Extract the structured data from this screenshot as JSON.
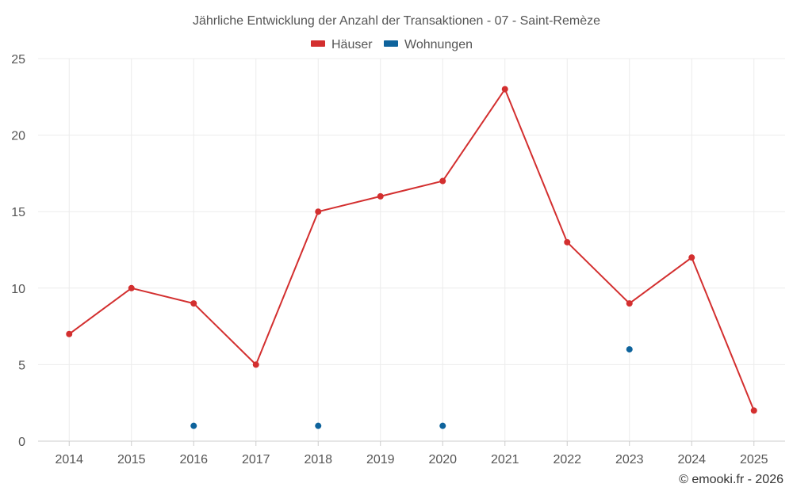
{
  "chart_data": {
    "type": "line",
    "title": "Jährliche Entwicklung der Anzahl der Transaktionen - 07 - Saint-Remèze",
    "categories": [
      "2014",
      "2015",
      "2016",
      "2017",
      "2018",
      "2019",
      "2020",
      "2021",
      "2022",
      "2023",
      "2024",
      "2025"
    ],
    "series": [
      {
        "name": "Häuser",
        "color": "#d32f2f",
        "values": [
          7,
          10,
          9,
          5,
          15,
          16,
          17,
          23,
          13,
          9,
          12,
          2
        ],
        "style": "line-with-markers"
      },
      {
        "name": "Wohnungen",
        "color": "#0e639c",
        "values": [
          null,
          null,
          1,
          null,
          1,
          null,
          1,
          null,
          null,
          6,
          null,
          null
        ],
        "style": "markers-only"
      }
    ],
    "yticks": [
      0,
      5,
      10,
      15,
      20,
      25
    ],
    "ylim": [
      0,
      25
    ],
    "grid": true,
    "legend_position": "top-center"
  },
  "credit": "© emooki.fr - 2026"
}
